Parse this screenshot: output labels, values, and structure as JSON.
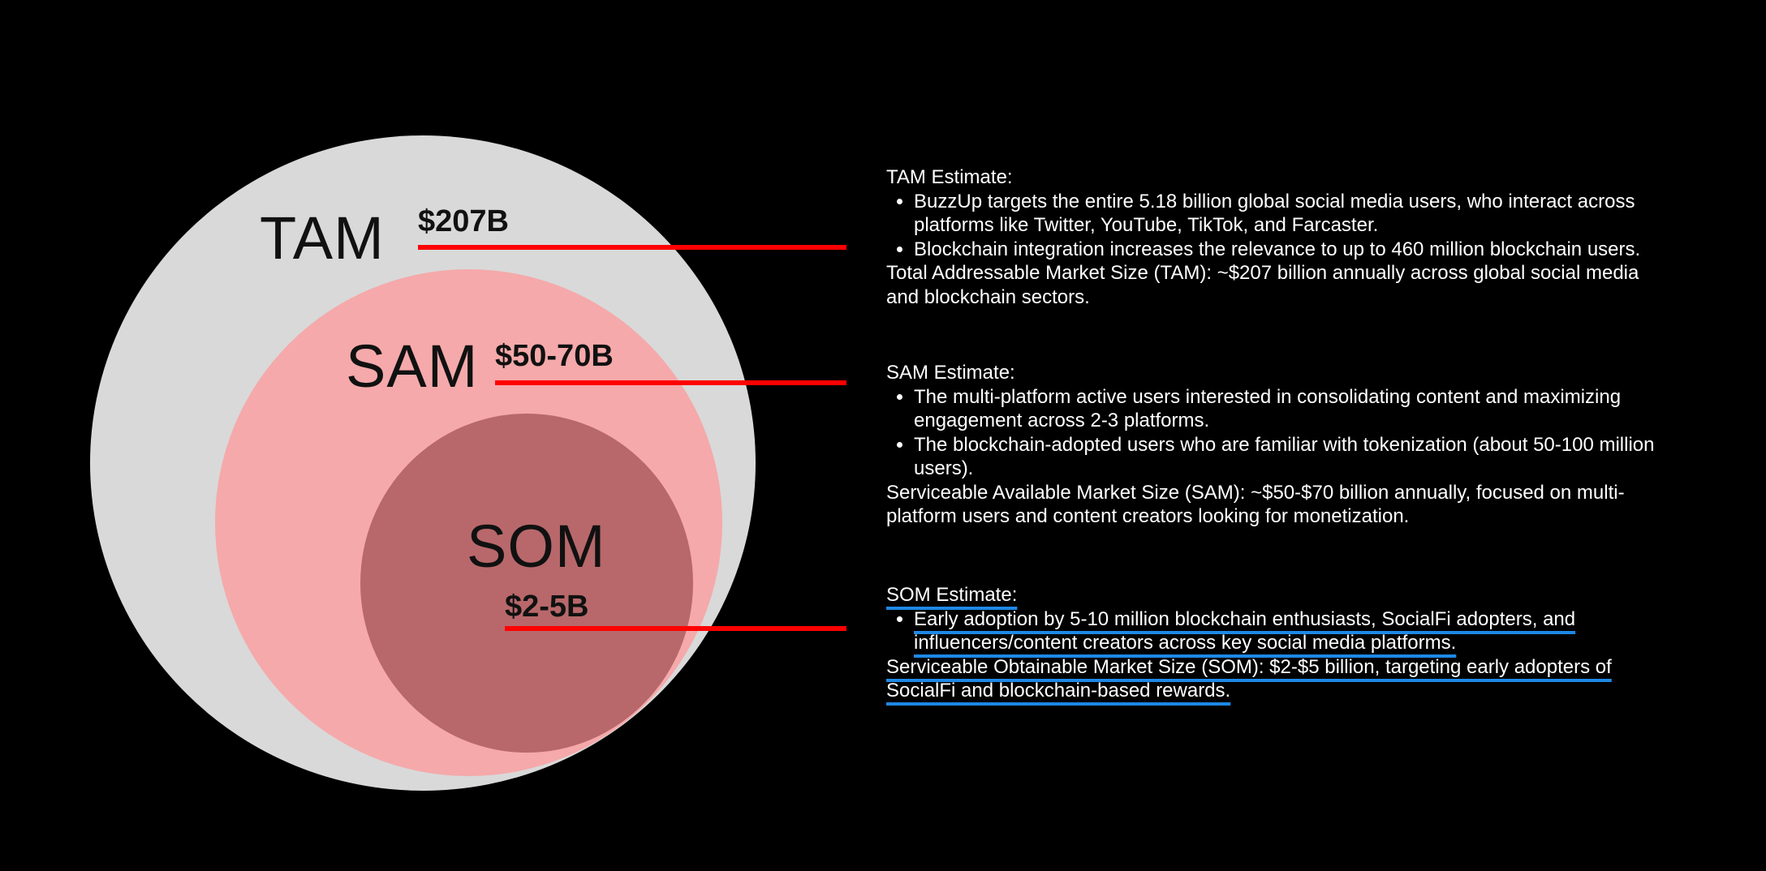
{
  "diagram": {
    "tam": {
      "label": "TAM",
      "value": "$207B"
    },
    "sam": {
      "label": "SAM",
      "value": "$50-70B"
    },
    "som": {
      "label": "SOM",
      "value": "$2-5B"
    }
  },
  "colors": {
    "background": "#000000",
    "tam_circle": "#d9d9d9",
    "sam_circle": "#f5a9aa",
    "som_circle": "#b8686a",
    "connector": "#ff0000",
    "som_underline": "#1e88e5"
  },
  "panels": {
    "tam": {
      "heading": "TAM Estimate:",
      "bullets": [
        "BuzzUp targets the entire 5.18 billion global social media users, who interact across platforms like Twitter, YouTube, TikTok, and Farcaster.",
        "Blockchain integration increases the relevance to up to 460 million blockchain users."
      ],
      "summary": "Total Addressable Market Size (TAM): ~$207 billion annually across global social media and blockchain sectors."
    },
    "sam": {
      "heading": "SAM Estimate:",
      "bullets": [
        "The multi-platform active users interested in consolidating content and maximizing engagement across 2-3 platforms.",
        "The blockchain-adopted users who are familiar with tokenization (about 50-100 million users)."
      ],
      "summary": "Serviceable Available Market Size (SAM): ~$50-$70 billion annually, focused on multi-platform users and content creators looking for monetization."
    },
    "som": {
      "heading": "SOM Estimate:",
      "bullets": [
        "Early adoption by 5-10 million blockchain enthusiasts, SocialFi adopters, and influencers/content creators across key social media platforms."
      ],
      "summary": "Serviceable Obtainable Market Size (SOM): $2-$5 billion, targeting early adopters of SocialFi and blockchain-based rewards."
    }
  }
}
